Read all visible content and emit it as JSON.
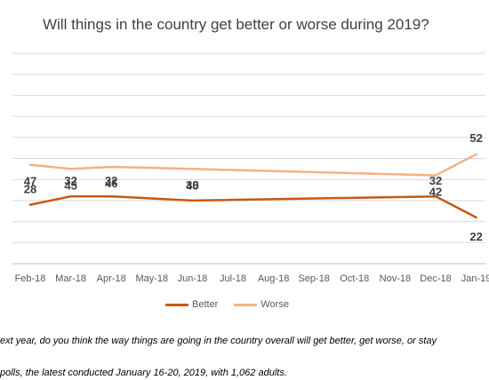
{
  "chart_data": {
    "type": "line",
    "title": "Will things in the country get better or worse during 2019?",
    "categories": [
      "Feb-18",
      "Mar-18",
      "Apr-18",
      "May-18",
      "Jun-18",
      "Jul-18",
      "Aug-18",
      "Sep-18",
      "Oct-18",
      "Nov-18",
      "Dec-18",
      "Jan-19"
    ],
    "series": [
      {
        "name": "Better",
        "color": "#C55A11",
        "values": [
          28,
          32,
          32,
          null,
          30,
          null,
          null,
          null,
          null,
          null,
          32,
          22
        ]
      },
      {
        "name": "Worse",
        "color": "#F4B183",
        "values": [
          47,
          45,
          46,
          null,
          45,
          null,
          null,
          null,
          null,
          null,
          42,
          52
        ]
      }
    ],
    "ylim": [
      0,
      100
    ],
    "grid": true,
    "legend_position": "bottom"
  },
  "notes": [
    "ext year, do you think the way things are going in the country overall will get better, get worse, or stay",
    "polls, the latest conducted January 16-20, 2019, with 1,062 adults."
  ]
}
